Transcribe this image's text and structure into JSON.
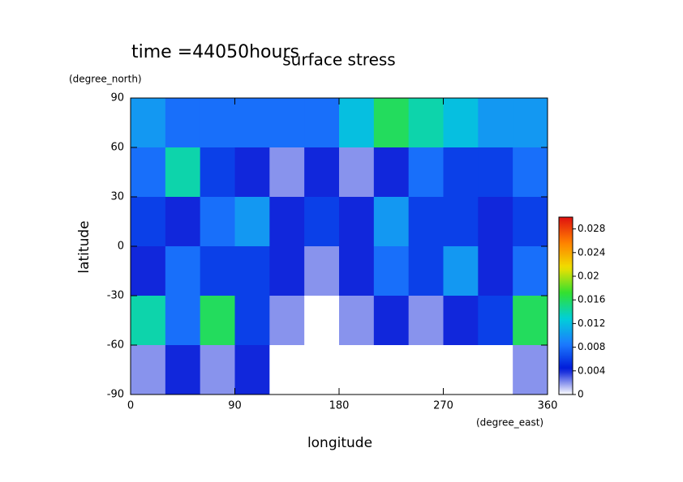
{
  "chart_data": {
    "type": "heatmap",
    "title": "surface stress",
    "subtitle": "time =44050hours",
    "x_label": "longitude",
    "x_unit": "(degree_east)",
    "y_label": "latitude",
    "y_unit": "(degree_north)",
    "x": [
      15,
      45,
      75,
      105,
      135,
      165,
      195,
      225,
      255,
      285,
      315,
      345
    ],
    "y": [
      75,
      45,
      15,
      -15,
      -45,
      -75
    ],
    "z": [
      [
        0.01,
        0.008,
        0.008,
        0.008,
        0.008,
        0.008,
        0.012,
        0.016,
        0.014,
        0.012,
        0.01,
        0.01
      ],
      [
        0.008,
        0.014,
        0.006,
        0.004,
        0.002,
        0.004,
        0.002,
        0.004,
        0.008,
        0.006,
        0.006,
        0.008
      ],
      [
        0.006,
        0.004,
        0.008,
        0.01,
        0.004,
        0.006,
        0.004,
        0.01,
        0.006,
        0.006,
        0.004,
        0.006
      ],
      [
        0.004,
        0.008,
        0.006,
        0.006,
        0.004,
        0.002,
        0.004,
        0.008,
        0.006,
        0.01,
        0.004,
        0.008
      ],
      [
        0.014,
        0.008,
        0.016,
        0.006,
        0.002,
        0,
        0.002,
        0.004,
        0.002,
        0.004,
        0.006,
        0.016
      ],
      [
        0.002,
        0.004,
        0.002,
        0.004,
        0,
        0,
        0,
        0,
        0,
        0,
        0,
        0.002
      ]
    ],
    "xlim": [
      0,
      360
    ],
    "xticks": [
      0,
      90,
      180,
      270,
      360
    ],
    "ylim": [
      -90,
      90
    ],
    "yticks": [
      -90,
      -60,
      -30,
      0,
      30,
      60,
      90
    ],
    "clim": [
      0,
      0.03
    ],
    "cticks": [
      0,
      0.004,
      0.008,
      0.012,
      0.016,
      0.02,
      0.024,
      0.028
    ],
    "colormap": [
      "#ffffff",
      "#0018d8",
      "#1c7cff",
      "#00d0d8",
      "#30e030",
      "#f0e000",
      "#ff8000",
      "#e01010"
    ]
  }
}
